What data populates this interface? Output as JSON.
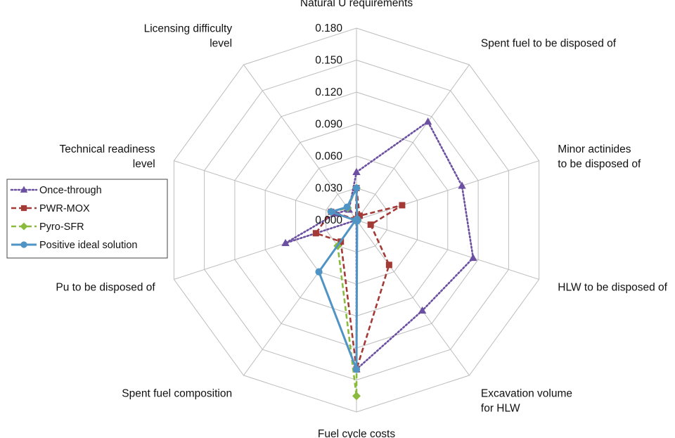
{
  "chart_data": {
    "type": "radar",
    "axes": [
      [
        "Natural U requirements"
      ],
      [
        "Spent fuel to be disposed of"
      ],
      [
        "Minor actinides",
        "to be disposed of"
      ],
      [
        "HLW to be disposed of"
      ],
      [
        "Excavation volume",
        "for HLW"
      ],
      [
        "Fuel cycle costs"
      ],
      [
        "Spent fuel composition"
      ],
      [
        "Pu to be disposed of"
      ],
      [
        "Technical readiness",
        "level"
      ],
      [
        "Licensing difficulty",
        "level"
      ]
    ],
    "ticks": [
      "0.000",
      "0.030",
      "0.060",
      "0.090",
      "0.120",
      "0.150",
      "0.180"
    ],
    "rmax": 0.18,
    "series": [
      {
        "name": "Once-through",
        "color": "#6b4fa0",
        "dash": "dotted",
        "marker": "triangle",
        "values": [
          0.045,
          0.114,
          0.104,
          0.115,
          0.105,
          0.14,
          0.0,
          0.07,
          0.02,
          0.012
        ]
      },
      {
        "name": "PWR-MOX",
        "color": "#a33a35",
        "dash": "dashed",
        "marker": "square",
        "values": [
          0.03,
          0.005,
          0.045,
          0.014,
          0.052,
          0.14,
          0.025,
          0.04,
          0.025,
          0.001
        ]
      },
      {
        "name": "Pyro-SFR",
        "color": "#8bbb3c",
        "dash": "dashed",
        "marker": "diamond",
        "values": [
          0.03,
          0.001,
          0.001,
          0.001,
          0.001,
          0.165,
          0.03,
          0.001,
          0.025,
          0.014
        ]
      },
      {
        "name": "Positive ideal solution",
        "color": "#4f94c4",
        "dash": "solid",
        "marker": "circle",
        "values": [
          0.03,
          0.001,
          0.001,
          0.001,
          0.001,
          0.14,
          0.06,
          0.001,
          0.025,
          0.015
        ]
      }
    ],
    "legend_position": "left"
  }
}
